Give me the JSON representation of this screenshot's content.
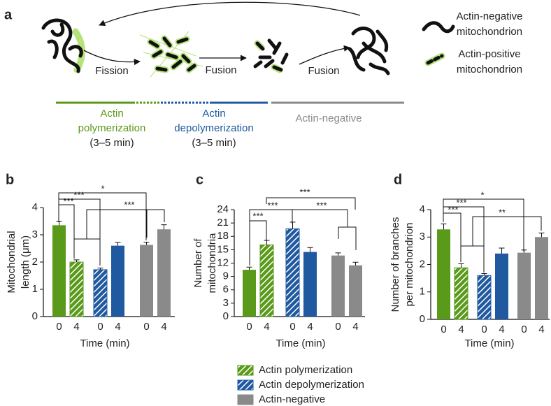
{
  "diagram": {
    "panel": "a",
    "steps": [
      "Fission",
      "Fusion",
      "Fusion"
    ],
    "legend": [
      [
        "Actin-negative",
        "mitochondrion"
      ],
      [
        "Actin-positive",
        "mitochondrion"
      ]
    ],
    "phases": [
      {
        "lines": [
          "Actin",
          "polymerization",
          "(3–5 min)"
        ],
        "color": "#5a9a1a"
      },
      {
        "lines": [
          "Actin",
          "depolymerization",
          "(3–5 min)"
        ],
        "color": "#1f5aa0"
      },
      {
        "lines": [
          "Actin-negative"
        ],
        "color": "#8a8a8a"
      }
    ]
  },
  "chart_data": [
    {
      "type": "bar",
      "panel": "b",
      "ylabel": [
        "Mitochondrial",
        "length (μm)"
      ],
      "xlabel": "Time (min)",
      "categories": [
        "0",
        "4"
      ],
      "ylim": [
        0,
        4
      ],
      "yticks": [
        0,
        1,
        2,
        3,
        4
      ],
      "series": [
        {
          "name": "Actin polymerization",
          "color": "#5a9a1a",
          "hatched": [
            false,
            true
          ],
          "values": [
            3.35,
            2.0
          ],
          "errors": [
            0.15,
            0.08
          ]
        },
        {
          "name": "Actin depolymerization",
          "color": "#1f5aa0",
          "hatched": [
            true,
            false
          ],
          "values": [
            1.72,
            2.6
          ],
          "errors": [
            0.06,
            0.12
          ]
        },
        {
          "name": "Actin-negative",
          "color": "#8a8a8a",
          "hatched": [
            false,
            false
          ],
          "values": [
            2.63,
            3.2
          ],
          "errors": [
            0.1,
            0.17
          ]
        }
      ],
      "annotations": [
        "***",
        "***",
        "*",
        "***"
      ]
    },
    {
      "type": "bar",
      "panel": "c",
      "ylabel": [
        "Number of",
        "mitochondria"
      ],
      "xlabel": "Time (min)",
      "categories": [
        "0",
        "4"
      ],
      "ylim": [
        0,
        24
      ],
      "yticks": [
        0,
        3,
        6,
        9,
        12,
        15,
        18,
        21,
        24
      ],
      "series": [
        {
          "color": "#5a9a1a",
          "hatched": [
            false,
            true
          ],
          "values": [
            10.5,
            16.1
          ],
          "errors": [
            0.6,
            1.0
          ]
        },
        {
          "color": "#1f5aa0",
          "hatched": [
            true,
            false
          ],
          "values": [
            19.7,
            14.5
          ],
          "errors": [
            1.5,
            1.0
          ]
        },
        {
          "color": "#8a8a8a",
          "hatched": [
            false,
            false
          ],
          "values": [
            13.7,
            11.5
          ],
          "errors": [
            0.6,
            0.7
          ]
        }
      ],
      "annotations": [
        "***",
        "***",
        "***",
        "***"
      ]
    },
    {
      "type": "bar",
      "panel": "d",
      "ylabel": [
        "Number of branches",
        "per mitochondrion"
      ],
      "xlabel": "Time (min)",
      "categories": [
        "0",
        "4"
      ],
      "ylim": [
        0,
        4
      ],
      "yticks": [
        0,
        1,
        2,
        3,
        4
      ],
      "series": [
        {
          "color": "#5a9a1a",
          "hatched": [
            false,
            true
          ],
          "values": [
            3.28,
            1.88
          ],
          "errors": [
            0.2,
            0.15
          ]
        },
        {
          "color": "#1f5aa0",
          "hatched": [
            true,
            false
          ],
          "values": [
            1.6,
            2.4
          ],
          "errors": [
            0.07,
            0.2
          ]
        },
        {
          "color": "#8a8a8a",
          "hatched": [
            false,
            false
          ],
          "values": [
            2.43,
            3.0
          ],
          "errors": [
            0.1,
            0.15
          ]
        }
      ],
      "annotations": [
        "***",
        "***",
        "*",
        "**"
      ]
    }
  ]
}
